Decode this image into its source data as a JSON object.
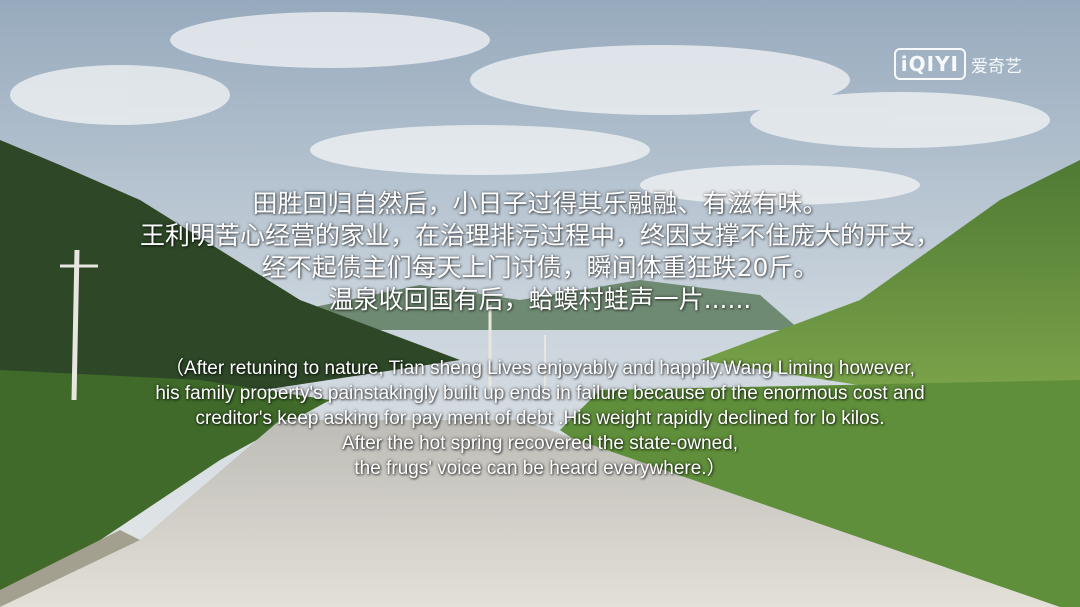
{
  "watermark": {
    "brand_box": "iQIYI",
    "brand_text": "爱奇艺"
  },
  "subtitle_cn": [
    "田胜回归自然后，小日子过得其乐融融、有滋有味。",
    "王利明苦心经营的家业，在治理排污过程中，终因支撑不住庞大的开支，",
    "经不起债主们每天上门讨债，瞬间体重狂跌20斤。",
    "温泉收回国有后，蛤蟆村蛙声一片......"
  ],
  "subtitle_en": [
    "（After retuning to nature, Tian sheng Lives enjoyably and happily.Wang Liming however,",
    "his family property's painstakingly built up ends in failure because of the enormous cost and",
    "creditor's keep asking for pay ment of debt .His weight rapidly declined for lo kilos.",
    "After the hot spring recovered the state-owned,",
    "the frugs' voice can be heard everywhere.）"
  ],
  "colors": {
    "sky_top": "#9fb3c6",
    "sky_bottom": "#e8ecef",
    "hill_dark": "#2f4a2a",
    "hill_light": "#6e9a45",
    "road": "#d9d6cf"
  }
}
